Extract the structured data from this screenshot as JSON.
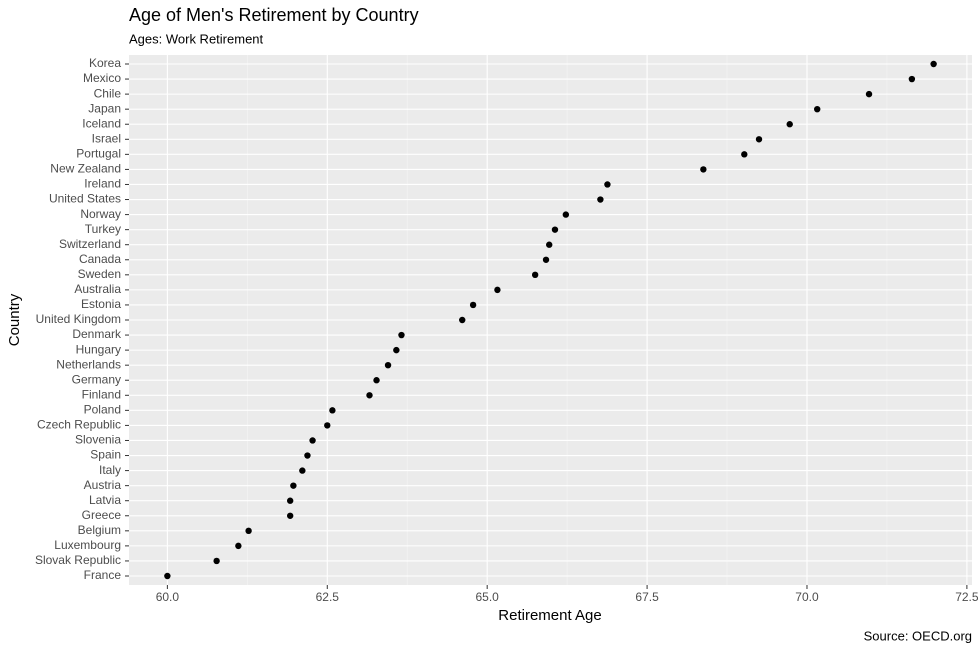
{
  "chart_data": {
    "type": "dot",
    "title": "Age of Men's Retirement by Country",
    "subtitle": "Ages: Work Retirement",
    "x_label": "Retirement Age",
    "y_label": "Country",
    "caption": "Source: OECD.org",
    "categories": [
      "Korea",
      "Mexico",
      "Chile",
      "Japan",
      "Iceland",
      "Israel",
      "Portugal",
      "New Zealand",
      "Ireland",
      "United States",
      "Norway",
      "Turkey",
      "Switzerland",
      "Canada",
      "Sweden",
      "Australia",
      "Estonia",
      "United Kingdom",
      "Denmark",
      "Hungary",
      "Netherlands",
      "Germany",
      "Finland",
      "Poland",
      "Czech Republic",
      "Slovenia",
      "Spain",
      "Italy",
      "Austria",
      "Latvia",
      "Greece",
      "Belgium",
      "Luxembourg",
      "Slovak Republic",
      "France"
    ],
    "values": [
      71.98,
      71.64,
      70.97,
      70.16,
      69.73,
      69.25,
      69.02,
      68.38,
      66.88,
      66.77,
      66.23,
      66.06,
      65.97,
      65.92,
      65.75,
      65.16,
      64.78,
      64.61,
      63.66,
      63.58,
      63.45,
      63.27,
      63.16,
      62.58,
      62.5,
      62.27,
      62.19,
      62.11,
      61.97,
      61.92,
      61.92,
      61.27,
      61.11,
      60.77,
      60.0
    ],
    "color": "#000000",
    "xlim": [
      59.4,
      72.58
    ],
    "xticks": [
      {
        "value": 60,
        "label": "60.0"
      },
      62.5,
      {
        "value": 65,
        "label": "65.0"
      },
      67.5,
      {
        "value": 70,
        "label": "70.0"
      },
      72.5
    ],
    "grid": true,
    "minor_grid": true
  }
}
